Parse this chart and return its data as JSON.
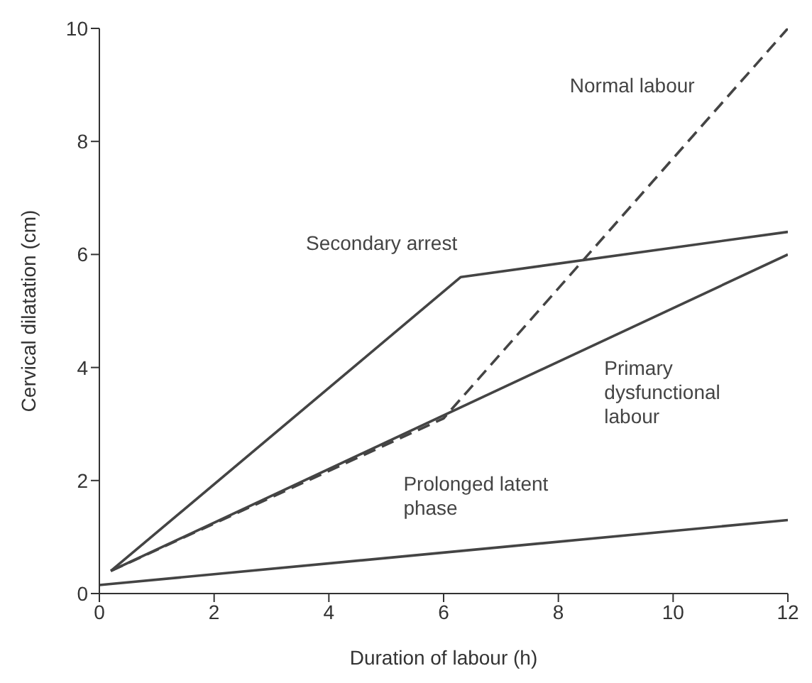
{
  "chart_data": {
    "type": "line",
    "xlabel": "Duration of labour (h)",
    "ylabel": "Cervical dilatation (cm)",
    "xlim": [
      0,
      12
    ],
    "xticks": [
      0,
      2,
      4,
      6,
      8,
      10,
      12
    ],
    "ylim": [
      0,
      10
    ],
    "yticks": [
      0,
      2,
      4,
      6,
      8,
      10
    ],
    "marker": "none",
    "series": [
      {
        "name": "Normal labour",
        "color": "#444444",
        "line_style": "dashed",
        "x": [
          0.2,
          6,
          12
        ],
        "values": [
          0.4,
          3.1,
          10
        ]
      },
      {
        "name": "Secondary arrest",
        "color": "#444444",
        "line_style": "solid",
        "x": [
          0.2,
          6.3,
          12
        ],
        "values": [
          0.4,
          5.6,
          6.4
        ]
      },
      {
        "name": "Primary dysfunctional labour",
        "color": "#444444",
        "line_style": "solid",
        "x": [
          0.2,
          12
        ],
        "values": [
          0.4,
          6
        ]
      },
      {
        "name": "Prolonged latent phase",
        "color": "#444444",
        "line_style": "solid",
        "x": [
          0,
          12
        ],
        "values": [
          0.15,
          1.3
        ]
      }
    ]
  }
}
